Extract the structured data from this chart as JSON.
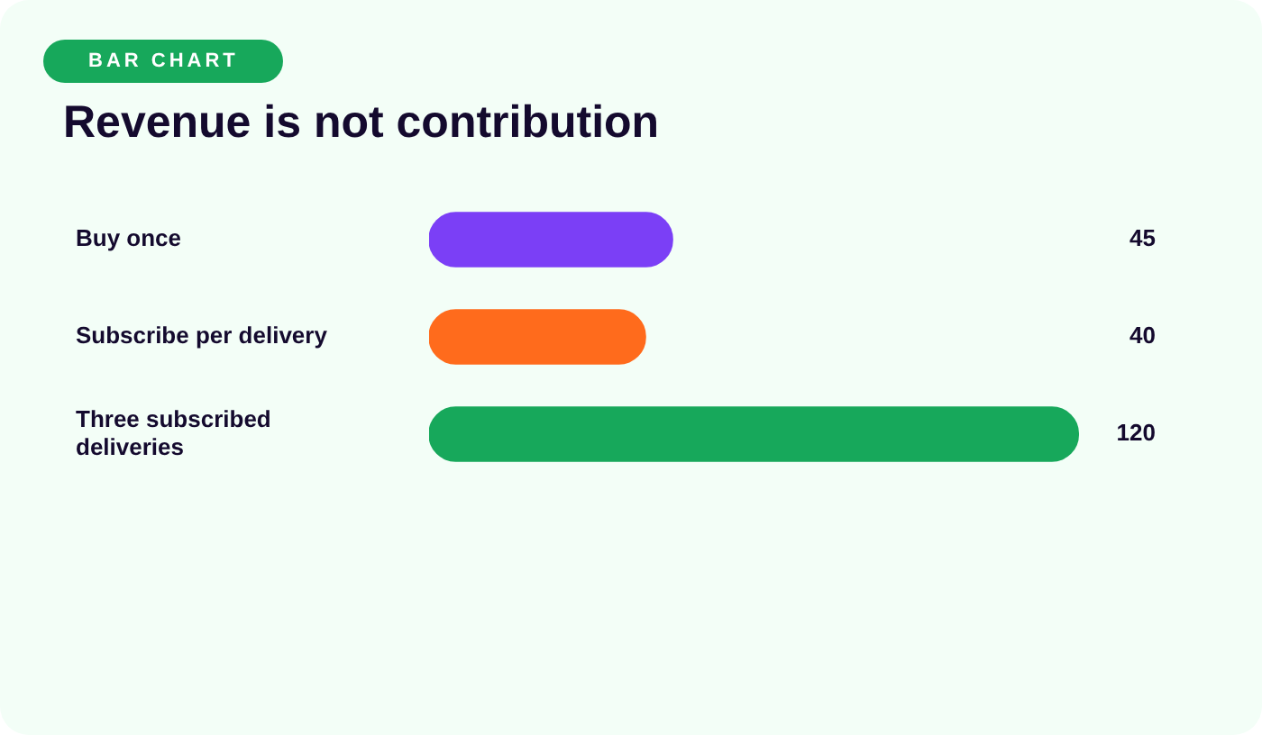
{
  "chart_data": {
    "type": "bar",
    "orientation": "horizontal",
    "title": "Revenue is not contribution",
    "annotations": [
      "BAR CHART"
    ],
    "categories": [
      "Buy once",
      "Subscribe per delivery",
      "Three subscribed deliveries"
    ],
    "values": [
      45,
      40,
      120
    ],
    "colors": [
      "#7b3ff6",
      "#ff6b1c",
      "#17a85b"
    ],
    "data_labels": true,
    "legend": false
  }
}
